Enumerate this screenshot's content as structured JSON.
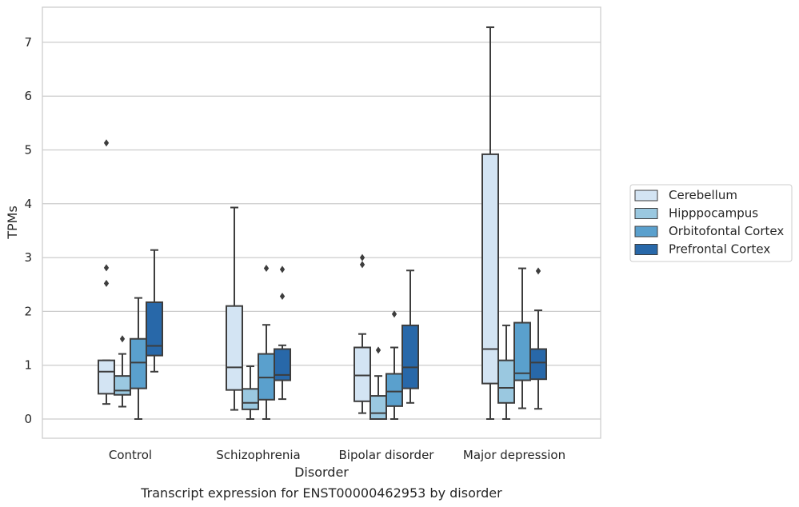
{
  "chart_data": {
    "type": "box",
    "title": "Transcript expression for ENST00000462953 by disorder",
    "xlabel": "Disorder",
    "ylabel": "TPMs",
    "ylim": [
      -0.35,
      7.65
    ],
    "yticks": [
      0,
      1,
      2,
      3,
      4,
      5,
      6,
      7
    ],
    "categories": [
      "Control",
      "Schizophrenia",
      "Bipolar disorder",
      "Major depression"
    ],
    "grid": true,
    "legend_position": "right",
    "series": [
      {
        "name": "Cerebellum",
        "color": "#d3e4f3",
        "boxes": [
          {
            "low": 0.28,
            "q1": 0.47,
            "median": 0.88,
            "q3": 1.09,
            "high": 1.09,
            "outliers": [
              5.13,
              2.81,
              2.52
            ]
          },
          {
            "low": 0.17,
            "q1": 0.54,
            "median": 0.96,
            "q3": 2.1,
            "high": 3.93,
            "outliers": []
          },
          {
            "low": 0.11,
            "q1": 0.33,
            "median": 0.81,
            "q3": 1.33,
            "high": 1.58,
            "outliers": [
              3.0,
              2.87
            ]
          },
          {
            "low": 0.0,
            "q1": 0.66,
            "median": 1.3,
            "q3": 4.92,
            "high": 7.28,
            "outliers": []
          }
        ]
      },
      {
        "name": "Hipppocampus",
        "color": "#9ac8e0",
        "boxes": [
          {
            "low": 0.23,
            "q1": 0.45,
            "median": 0.53,
            "q3": 0.8,
            "high": 1.21,
            "outliers": [
              1.49
            ]
          },
          {
            "low": 0.0,
            "q1": 0.18,
            "median": 0.3,
            "q3": 0.56,
            "high": 0.98,
            "outliers": []
          },
          {
            "low": 0.0,
            "q1": 0.0,
            "median": 0.11,
            "q3": 0.43,
            "high": 0.8,
            "outliers": [
              1.28
            ]
          },
          {
            "low": 0.0,
            "q1": 0.3,
            "median": 0.58,
            "q3": 1.09,
            "high": 1.74,
            "outliers": []
          }
        ]
      },
      {
        "name": "Orbitofontal Cortex",
        "color": "#5aa0cd",
        "boxes": [
          {
            "low": 0.0,
            "q1": 0.57,
            "median": 1.05,
            "q3": 1.49,
            "high": 2.25,
            "outliers": []
          },
          {
            "low": 0.0,
            "q1": 0.36,
            "median": 0.77,
            "q3": 1.21,
            "high": 1.75,
            "outliers": [
              2.8
            ]
          },
          {
            "low": 0.0,
            "q1": 0.24,
            "median": 0.51,
            "q3": 0.84,
            "high": 1.33,
            "outliers": [
              1.95
            ]
          },
          {
            "low": 0.2,
            "q1": 0.72,
            "median": 0.85,
            "q3": 1.79,
            "high": 2.8,
            "outliers": []
          }
        ]
      },
      {
        "name": "Prefrontal Cortex",
        "color": "#2868a9",
        "boxes": [
          {
            "low": 0.88,
            "q1": 1.18,
            "median": 1.36,
            "q3": 2.17,
            "high": 3.14,
            "outliers": []
          },
          {
            "low": 0.37,
            "q1": 0.72,
            "median": 0.82,
            "q3": 1.3,
            "high": 1.37,
            "outliers": [
              2.78,
              2.28
            ]
          },
          {
            "low": 0.3,
            "q1": 0.57,
            "median": 0.96,
            "q3": 1.74,
            "high": 2.76,
            "outliers": []
          },
          {
            "low": 0.19,
            "q1": 0.74,
            "median": 1.05,
            "q3": 1.3,
            "high": 2.02,
            "outliers": [
              2.75
            ]
          }
        ]
      }
    ]
  }
}
